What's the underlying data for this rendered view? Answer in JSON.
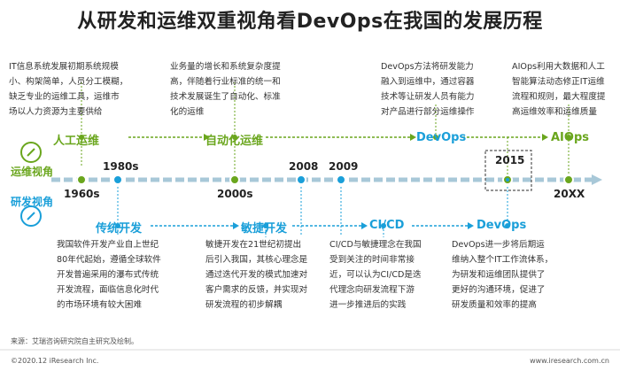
{
  "title": "从研发和运维双重视角看DevOps在我国的发展历程",
  "side_labels": {
    "ops": "运维视角",
    "dev": "研发视角"
  },
  "top_stages": {
    "manual_ops": "人工运维",
    "auto_ops": "自动化运维",
    "devops": "DevOps",
    "aiops": "AIOps"
  },
  "bottom_stages": {
    "traditional": "传统开发",
    "agile": "敏捷开发",
    "cicd": "CI/CD",
    "devops": "DevOps"
  },
  "years": {
    "y1960": "1960s",
    "y1980": "1980s",
    "y2000": "2000s",
    "y2008": "2008",
    "y2009": "2009",
    "y2015": "2015",
    "y20xx": "20XX"
  },
  "top_desc": {
    "d1": "IT信息系统发展初期系统规模\n小、构架简单，人员分工模糊，\n缺乏专业的运维工具，运维市\n场以人力资源为主要供给",
    "d2": "业务量的增长和系统复杂度提\n高，伴随着行业标准的统一和\n技术发展诞生了自动化、标准\n化的运维",
    "d3": "DevOps方法将研发能力\n融入到运维中，通过容器\n技术等让研发人员有能力\n对产品进行部分运维操作",
    "d4": "AIOps利用大数据和人工\n智能算法动态修正IT运维\n流程和规则，最大程度提\n高运维效率和运维质量"
  },
  "bottom_desc": {
    "d1": "我国软件开发产业自上世纪\n80年代起始，遵循全球软件\n开发普遍采用的瀑布式传统\n开发流程，面临信息化时代\n的市场环境有较大困难",
    "d2": "敏捷开发在21世纪初提出\n后引入我国，其核心理念是\n通过迭代开发的模式加速对\n客户需求的反馈，并实现对\n研发流程的初步解耦",
    "d3": "CI/CD与敏捷理念在我国\n受到关注的时间非常接\n近，可以认为CI/CD是迭\n代理念向研发流程下游\n进一步推进后的实践",
    "d4": "DevOps进一步将后期运\n维纳入整个IT工作流体系，\n为研发和运维团队提供了\n更好的沟通环境，促进了\n研发质量和效率的提高"
  },
  "footer": {
    "source": "来源：艾瑞咨询研究院自主研究及绘制。",
    "copyright": "©2020.12 iResearch Inc.",
    "website": "www.iresearch.com.cn"
  },
  "colors": {
    "green": "#6aa61d",
    "blue": "#1a9fd9",
    "axis": "#a8c8d8",
    "title": "#222222"
  },
  "icons": [
    "compass-icon",
    "compass-icon"
  ]
}
